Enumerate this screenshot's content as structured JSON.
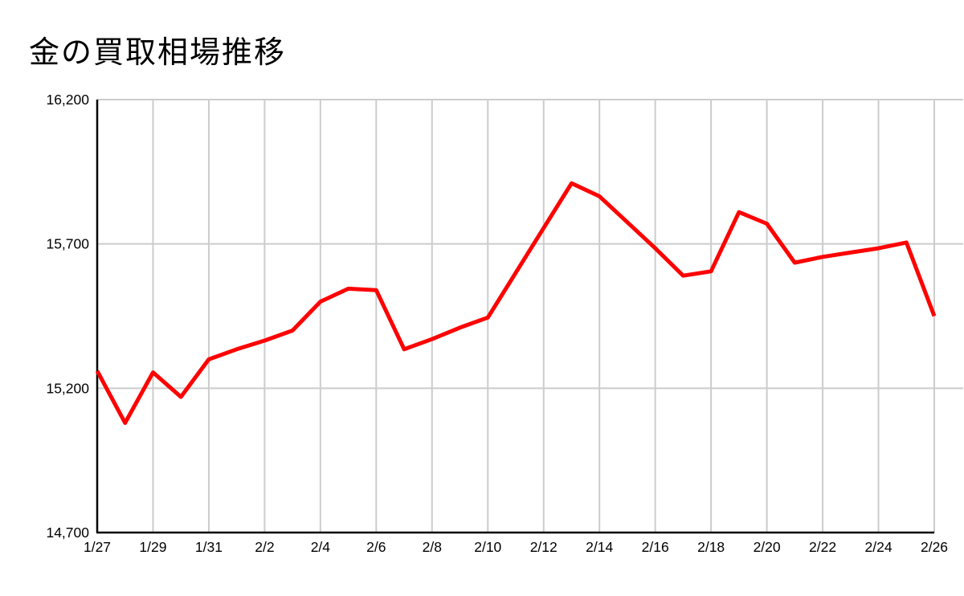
{
  "chart_data": {
    "type": "line",
    "title": "金の買取相場推移",
    "categories": [
      "1/27",
      "1/28",
      "1/29",
      "1/30",
      "1/31",
      "2/1",
      "2/2",
      "2/3",
      "2/4",
      "2/5",
      "2/6",
      "2/7",
      "2/8",
      "2/9",
      "2/10",
      "2/11",
      "2/12",
      "2/13",
      "2/14",
      "2/15",
      "2/16",
      "2/17",
      "2/18",
      "2/19",
      "2/20",
      "2/21",
      "2/22",
      "2/23",
      "2/24",
      "2/25",
      "2/26"
    ],
    "values": [
      15260,
      15080,
      15255,
      15170,
      15300,
      15335,
      15365,
      15400,
      15500,
      15545,
      15540,
      15335,
      15370,
      15410,
      15445,
      15600,
      15755,
      15910,
      15865,
      15775,
      15685,
      15590,
      15605,
      15810,
      15770,
      15635,
      15655,
      15670,
      15685,
      15705,
      15450
    ],
    "x_tick_labels": [
      "1/27",
      "1/29",
      "1/31",
      "2/2",
      "2/4",
      "2/6",
      "2/8",
      "2/10",
      "2/12",
      "2/14",
      "2/16",
      "2/18",
      "2/20",
      "2/22",
      "2/24",
      "2/26"
    ],
    "y_ticks": [
      14700,
      15200,
      15700,
      16200
    ],
    "y_tick_labels": [
      "14,700",
      "15,200",
      "15,700",
      "16,200"
    ],
    "ylim": [
      14700,
      16200
    ],
    "xlabel": "",
    "ylabel": "",
    "grid": true,
    "legend": "none",
    "line_color": "#ff0000",
    "gridline_color": "#cccccc",
    "axis_color": "#000000",
    "text_color": "#000000",
    "background_color": "#ffffff"
  }
}
